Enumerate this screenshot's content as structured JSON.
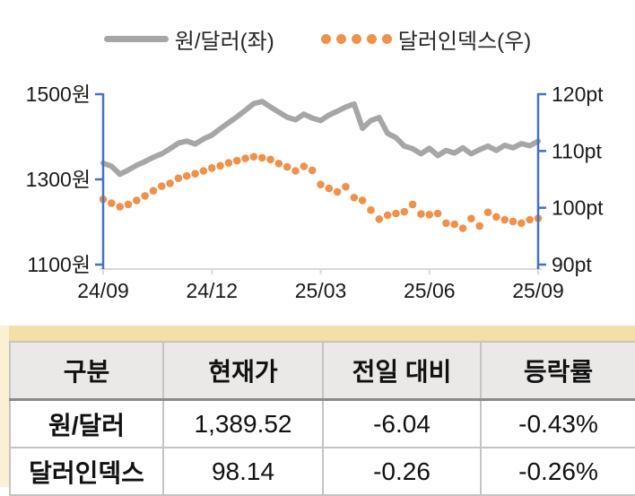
{
  "colors": {
    "axis_blue": "#4472C4",
    "bottom_axis_gray": "#D9D9D9",
    "line_gray": "#A6A6A6",
    "dots_orange": "#F0914B",
    "band_tan": "#F5DFA6",
    "strip_cream": "#FBF0D4",
    "header_bg": "#EAE9E8",
    "border_gray": "#C6C4C2",
    "tick_text": "#1a1a1a"
  },
  "chart_data": {
    "type": "line",
    "title": "",
    "legend_position": "top",
    "x_tick_labels": [
      "24/09",
      "24/12",
      "25/03",
      "25/06",
      "25/09"
    ],
    "x_tick_positions_weeks": [
      0,
      13,
      26,
      39,
      52
    ],
    "left_axis": {
      "tick_labels": [
        "1500원",
        "1300원",
        "1100원"
      ],
      "tick_values": [
        1500,
        1300,
        1100
      ],
      "min": 1100,
      "max": 1500,
      "unit": "원"
    },
    "right_axis": {
      "tick_labels": [
        "120pt",
        "110pt",
        "100pt",
        "90pt"
      ],
      "tick_values": [
        120,
        110,
        100,
        90
      ],
      "min": 90,
      "max": 120,
      "unit": "pt"
    },
    "series": [
      {
        "name": "원/달러(좌)",
        "axis": "left",
        "style": "line",
        "color": "#A6A6A6",
        "values": [
          1338,
          1331,
          1312,
          1322,
          1333,
          1342,
          1352,
          1360,
          1372,
          1385,
          1390,
          1383,
          1395,
          1404,
          1419,
          1433,
          1447,
          1462,
          1478,
          1483,
          1470,
          1458,
          1446,
          1440,
          1453,
          1444,
          1438,
          1451,
          1460,
          1470,
          1477,
          1420,
          1438,
          1445,
          1408,
          1398,
          1378,
          1372,
          1360,
          1373,
          1356,
          1368,
          1362,
          1374,
          1360,
          1370,
          1378,
          1368,
          1380,
          1374,
          1384,
          1379,
          1389.5
        ]
      },
      {
        "name": "달러인덱스(우)",
        "axis": "right",
        "style": "dots",
        "color": "#F0914B",
        "values": [
          101.5,
          100.8,
          100.2,
          100.6,
          101.3,
          102.1,
          103.0,
          103.8,
          104.3,
          105.2,
          105.6,
          106.0,
          106.5,
          107.0,
          107.4,
          107.9,
          108.3,
          108.7,
          109.0,
          108.8,
          108.5,
          107.8,
          107.2,
          106.5,
          107.3,
          106.6,
          104.1,
          103.4,
          102.8,
          103.7,
          101.8,
          101.3,
          99.6,
          98.0,
          98.7,
          99.0,
          99.3,
          100.6,
          98.9,
          98.8,
          99.0,
          97.3,
          97.1,
          96.4,
          98.1,
          96.8,
          99.2,
          98.4,
          97.9,
          97.6,
          97.3,
          97.9,
          98.14
        ]
      }
    ]
  },
  "table": {
    "headers": [
      "구분",
      "현재가",
      "전일 대비",
      "등락률"
    ],
    "rows": [
      [
        "원/달러",
        "1,389.52",
        "-6.04",
        "-0.43%"
      ],
      [
        "달러인덱스",
        "98.14",
        "-0.26",
        "-0.26%"
      ]
    ]
  }
}
